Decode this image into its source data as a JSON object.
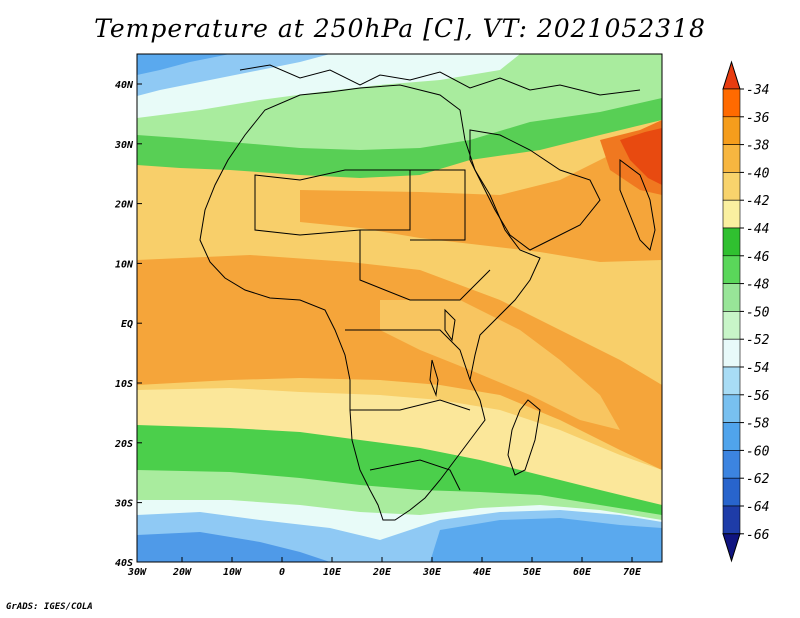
{
  "title": "Temperature at 250hPa [C], VT: 2021052318",
  "credit": "GrADS: IGES/COLA",
  "map": {
    "lon_labels": [
      "30W",
      "20W",
      "10W",
      "0",
      "10E",
      "20E",
      "30E",
      "40E",
      "50E",
      "60E",
      "70E"
    ],
    "lat_labels": [
      "40N",
      "30N",
      "20N",
      "10N",
      "EQ",
      "10S",
      "20S",
      "30S",
      "40S"
    ]
  },
  "colorbar": {
    "levels": [
      "-34",
      "-36",
      "-38",
      "-40",
      "-42",
      "-44",
      "-46",
      "-48",
      "-50",
      "-52",
      "-54",
      "-56",
      "-58",
      "-60",
      "-62",
      "-64",
      "-66"
    ],
    "colors": [
      "#e83c10",
      "#ff6a00",
      "#f59d1c",
      "#f7b640",
      "#f8d36c",
      "#faf0a0",
      "#30c030",
      "#5ad75a",
      "#98e598",
      "#c8f5c8",
      "#e8fafa",
      "#a8dcf5",
      "#78c0f0",
      "#50a4ec",
      "#3c84e0",
      "#2864cc",
      "#1e3ca8",
      "#101480"
    ]
  },
  "colors": {
    "warm_orange": "#f5a53a",
    "pale_yellow": "#fbe79a",
    "green": "#4bcf4b",
    "light_green": "#a9ec9e",
    "light_blue": "#8fc9f4",
    "red": "#e83c10"
  }
}
